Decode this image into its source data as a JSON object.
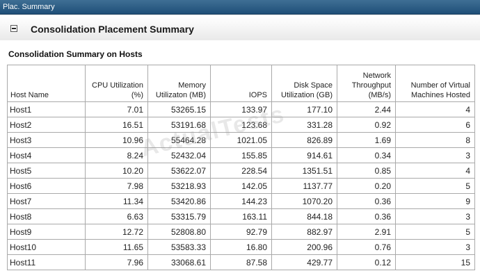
{
  "window": {
    "title": "Plac. Summary"
  },
  "panel": {
    "title": "Consolidation Placement Summary"
  },
  "section": {
    "title": "Consolidation Summary on Hosts"
  },
  "table": {
    "headers": [
      "Host Name",
      "CPU Utilization (%)",
      "Memory Utilizaton (MB)",
      "IOPS",
      "Disk Space Utilization (GB)",
      "Network Throughput (MB/s)",
      "Number of Virtual Machines Hosted"
    ],
    "rows": [
      [
        "Host1",
        "7.01",
        "53265.15",
        "133.97",
        "177.10",
        "2.44",
        "4"
      ],
      [
        "Host2",
        "16.51",
        "53191.68",
        "123.68",
        "331.28",
        "0.92",
        "6"
      ],
      [
        "Host3",
        "10.96",
        "55464.28",
        "1021.05",
        "826.89",
        "1.69",
        "8"
      ],
      [
        "Host4",
        "8.24",
        "52432.04",
        "155.85",
        "914.61",
        "0.34",
        "3"
      ],
      [
        "Host5",
        "10.20",
        "53622.07",
        "228.54",
        "1351.51",
        "0.85",
        "4"
      ],
      [
        "Host6",
        "7.98",
        "53218.93",
        "142.05",
        "1137.77",
        "0.20",
        "5"
      ],
      [
        "Host7",
        "11.34",
        "53420.86",
        "144.23",
        "1070.20",
        "0.36",
        "9"
      ],
      [
        "Host8",
        "6.63",
        "53315.79",
        "163.11",
        "844.18",
        "0.36",
        "3"
      ],
      [
        "Host9",
        "12.72",
        "52808.80",
        "92.79",
        "882.97",
        "2.91",
        "5"
      ],
      [
        "Host10",
        "11.65",
        "53583.33",
        "16.80",
        "200.96",
        "0.76",
        "3"
      ],
      [
        "Host11",
        "7.96",
        "33068.61",
        "87.58",
        "429.77",
        "0.12",
        "15"
      ]
    ]
  },
  "watermark": {
    "text": "ActualTests"
  }
}
